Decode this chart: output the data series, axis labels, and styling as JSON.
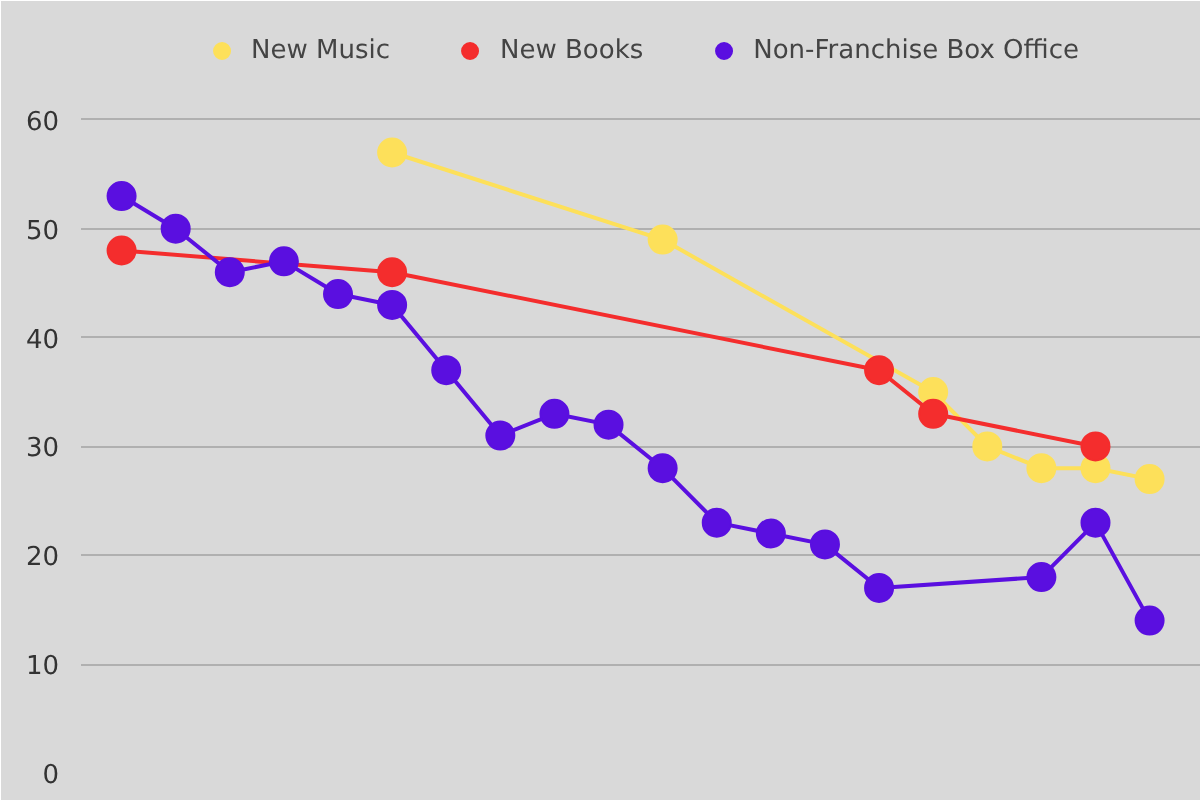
{
  "chart_data": {
    "type": "line",
    "categories": [
      null,
      null,
      null,
      null,
      null,
      null,
      null,
      null,
      null,
      null,
      null,
      null,
      null,
      null,
      null,
      null,
      null,
      null,
      null,
      null
    ],
    "series": [
      {
        "name": "New Music",
        "color": "#fde05a",
        "values": [
          null,
          null,
          null,
          null,
          null,
          57,
          null,
          null,
          null,
          null,
          49,
          null,
          null,
          null,
          null,
          35,
          30,
          28,
          28,
          27
        ]
      },
      {
        "name": "New Books",
        "color": "#f42d2d",
        "values": [
          48,
          null,
          null,
          null,
          null,
          46,
          null,
          null,
          null,
          null,
          null,
          null,
          null,
          null,
          37,
          33,
          null,
          null,
          30,
          null
        ]
      },
      {
        "name": "Non-Franchise Box Office",
        "color": "#5a0fe0",
        "values": [
          53,
          50,
          46,
          47,
          44,
          43,
          37,
          31,
          33,
          32,
          28,
          23,
          22,
          21,
          17,
          null,
          null,
          18,
          23,
          14
        ]
      }
    ],
    "ylim": [
      0,
      70
    ],
    "yticks": [
      0,
      10,
      20,
      30,
      40,
      50,
      60
    ],
    "grid": "y",
    "legend": "top",
    "marker": "circle",
    "line_style": "solid",
    "tick_labels": "y"
  }
}
